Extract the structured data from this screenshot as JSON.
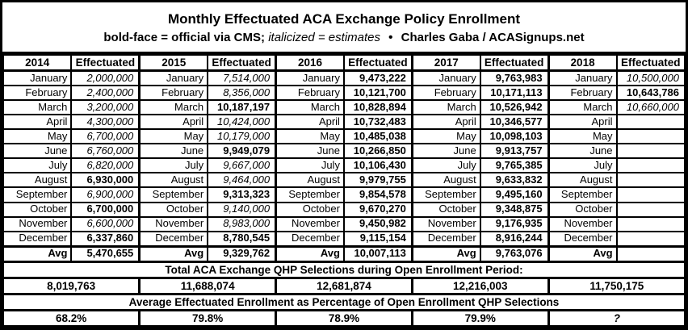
{
  "header": {
    "title": "Monthly Effectuated ACA Exchange Policy Enrollment",
    "legend_bold": "bold-face = official via CMS;",
    "legend_italic": "italicized = estimates",
    "bullet": "•",
    "credit": "Charles Gaba / ACASignups.net"
  },
  "chart_data": {
    "type": "table",
    "title": "Monthly Effectuated ACA Exchange Policy Enrollment",
    "column_header_label": "Effectuated",
    "avg_row_label": "Avg",
    "style_codes": {
      "e": "italicized estimate",
      "o": "bold official via CMS",
      "eo": "bold italic",
      "": "empty"
    },
    "months": [
      "January",
      "February",
      "March",
      "April",
      "May",
      "June",
      "July",
      "August",
      "September",
      "October",
      "November",
      "December"
    ],
    "years": [
      {
        "year": "2014",
        "values": [
          {
            "v": "2,000,000",
            "s": "e"
          },
          {
            "v": "2,400,000",
            "s": "e"
          },
          {
            "v": "3,200,000",
            "s": "e"
          },
          {
            "v": "4,300,000",
            "s": "e"
          },
          {
            "v": "6,700,000",
            "s": "e"
          },
          {
            "v": "6,760,000",
            "s": "e"
          },
          {
            "v": "6,820,000",
            "s": "e"
          },
          {
            "v": "6,930,000",
            "s": "o"
          },
          {
            "v": "6,900,000",
            "s": "e"
          },
          {
            "v": "6,700,000",
            "s": "o"
          },
          {
            "v": "6,600,000",
            "s": "e"
          },
          {
            "v": "6,337,860",
            "s": "o"
          }
        ],
        "avg": {
          "v": "5,470,655",
          "s": "o"
        }
      },
      {
        "year": "2015",
        "values": [
          {
            "v": "7,514,000",
            "s": "e"
          },
          {
            "v": "8,356,000",
            "s": "e"
          },
          {
            "v": "10,187,197",
            "s": "o"
          },
          {
            "v": "10,424,000",
            "s": "e"
          },
          {
            "v": "10,179,000",
            "s": "e"
          },
          {
            "v": "9,949,079",
            "s": "o"
          },
          {
            "v": "9,667,000",
            "s": "e"
          },
          {
            "v": "9,464,000",
            "s": "e"
          },
          {
            "v": "9,313,323",
            "s": "o"
          },
          {
            "v": "9,140,000",
            "s": "e"
          },
          {
            "v": "8,983,000",
            "s": "e"
          },
          {
            "v": "8,780,545",
            "s": "o"
          }
        ],
        "avg": {
          "v": "9,329,762",
          "s": "o"
        }
      },
      {
        "year": "2016",
        "values": [
          {
            "v": "9,473,222",
            "s": "o"
          },
          {
            "v": "10,121,700",
            "s": "o"
          },
          {
            "v": "10,828,894",
            "s": "o"
          },
          {
            "v": "10,732,483",
            "s": "o"
          },
          {
            "v": "10,485,038",
            "s": "o"
          },
          {
            "v": "10,266,850",
            "s": "o"
          },
          {
            "v": "10,106,430",
            "s": "o"
          },
          {
            "v": "9,979,755",
            "s": "o"
          },
          {
            "v": "9,854,578",
            "s": "o"
          },
          {
            "v": "9,670,270",
            "s": "o"
          },
          {
            "v": "9,450,982",
            "s": "o"
          },
          {
            "v": "9,115,154",
            "s": "o"
          }
        ],
        "avg": {
          "v": "10,007,113",
          "s": "o"
        }
      },
      {
        "year": "2017",
        "values": [
          {
            "v": "9,763,983",
            "s": "o"
          },
          {
            "v": "10,171,113",
            "s": "o"
          },
          {
            "v": "10,526,942",
            "s": "o"
          },
          {
            "v": "10,346,577",
            "s": "o"
          },
          {
            "v": "10,098,103",
            "s": "o"
          },
          {
            "v": "9,913,757",
            "s": "o"
          },
          {
            "v": "9,765,385",
            "s": "o"
          },
          {
            "v": "9,633,832",
            "s": "o"
          },
          {
            "v": "9,495,160",
            "s": "o"
          },
          {
            "v": "9,348,875",
            "s": "o"
          },
          {
            "v": "9,176,935",
            "s": "o"
          },
          {
            "v": "8,916,244",
            "s": "o"
          }
        ],
        "avg": {
          "v": "9,763,076",
          "s": "o"
        }
      },
      {
        "year": "2018",
        "values": [
          {
            "v": "10,500,000",
            "s": "e"
          },
          {
            "v": "10,643,786",
            "s": "o"
          },
          {
            "v": "10,660,000",
            "s": "e"
          },
          {
            "v": "",
            "s": ""
          },
          {
            "v": "",
            "s": ""
          },
          {
            "v": "",
            "s": ""
          },
          {
            "v": "",
            "s": ""
          },
          {
            "v": "",
            "s": ""
          },
          {
            "v": "",
            "s": ""
          },
          {
            "v": "",
            "s": ""
          },
          {
            "v": "",
            "s": ""
          },
          {
            "v": "",
            "s": ""
          }
        ],
        "avg": {
          "v": "",
          "s": ""
        }
      }
    ],
    "totals_label": "Total ACA Exchange QHP Selections during Open Enrollment Period:",
    "totals": [
      {
        "v": "8,019,763",
        "s": "o"
      },
      {
        "v": "11,688,074",
        "s": "o"
      },
      {
        "v": "12,681,874",
        "s": "o"
      },
      {
        "v": "12,216,003",
        "s": "o"
      },
      {
        "v": "11,750,175",
        "s": "o"
      }
    ],
    "pct_label": "Average Effectuated Enrollment as Percentage of Open Enrollment QHP Selections",
    "percentages": [
      {
        "v": "68.2%",
        "s": "o"
      },
      {
        "v": "79.8%",
        "s": "o"
      },
      {
        "v": "78.9%",
        "s": "o"
      },
      {
        "v": "79.9%",
        "s": "o"
      },
      {
        "v": "?",
        "s": "eo"
      }
    ]
  }
}
